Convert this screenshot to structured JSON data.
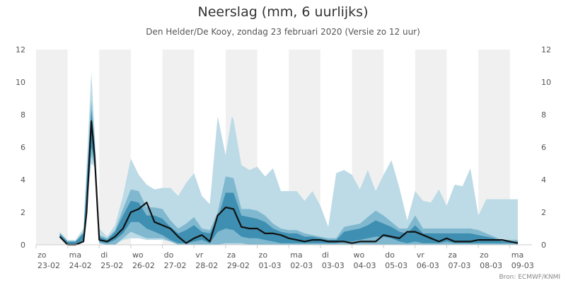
{
  "title": "Neerslag (mm, 6 uurlijks)",
  "subtitle": "Den Helder/De Kooy, zondag 23 februari 2020 (Versie zo 12 uur)",
  "source": "Bron: ECMWF/KNMI",
  "colors": {
    "band_outer": "#bcdbe6",
    "band_mid": "#80b8cf",
    "band_inner": "#3e8fb1",
    "median_line": "#111111",
    "day_shade": "#f0f0f0"
  },
  "chart_data": {
    "type": "area",
    "title": "Neerslag (mm, 6 uurlijks)",
    "subtitle": "Den Helder/De Kooy, zondag 23 februari 2020 (Versie zo 12 uur)",
    "xlabel": "",
    "ylabel": "",
    "ylim": [
      0,
      12
    ],
    "y_ticks": [
      0,
      2,
      4,
      6,
      8,
      10,
      12
    ],
    "y_axes": "left and right",
    "grid": false,
    "legend": "none",
    "x_unit": "days since 23-02-2020 00:00",
    "x_ticks": [
      {
        "day": "zo",
        "date": "23-02"
      },
      {
        "day": "ma",
        "date": "24-02"
      },
      {
        "day": "di",
        "date": "25-02"
      },
      {
        "day": "wo",
        "date": "26-02"
      },
      {
        "day": "do",
        "date": "27-02"
      },
      {
        "day": "vr",
        "date": "28-02"
      },
      {
        "day": "za",
        "date": "29-02"
      },
      {
        "day": "zo",
        "date": "01-03"
      },
      {
        "day": "ma",
        "date": "02-03"
      },
      {
        "day": "di",
        "date": "03-03"
      },
      {
        "day": "wo",
        "date": "04-03"
      },
      {
        "day": "do",
        "date": "05-03"
      },
      {
        "day": "vr",
        "date": "06-03"
      },
      {
        "day": "za",
        "date": "07-03"
      },
      {
        "day": "zo",
        "date": "08-03"
      },
      {
        "day": "ma",
        "date": "09-03"
      }
    ],
    "series": [
      {
        "role": "outer_band",
        "x": [
          0.75,
          1.0,
          1.25,
          1.5,
          1.75,
          1.85,
          2.0,
          2.25,
          2.5,
          2.75,
          3.0,
          3.25,
          3.5,
          3.75,
          4.0,
          4.25,
          4.5,
          4.75,
          5.0,
          5.25,
          5.5,
          5.75,
          6.0,
          6.2,
          6.25,
          6.5,
          6.75,
          7.0,
          7.25,
          7.5,
          7.75,
          8.0,
          8.25,
          8.5,
          8.75,
          9.0,
          9.25,
          9.5,
          9.75,
          10.0,
          10.25,
          10.5,
          10.75,
          11.0,
          11.25,
          11.5,
          11.75,
          12.0,
          12.25,
          12.5,
          12.75,
          13.0,
          13.25,
          13.5,
          13.75,
          14.0,
          14.25,
          14.5,
          14.75,
          15.0,
          15.25
        ],
        "lower": [
          0.5,
          0,
          0,
          0.3,
          5.0,
          4.8,
          0.1,
          0,
          0,
          0.3,
          0.4,
          0.4,
          0.3,
          0.3,
          0.3,
          0.2,
          0,
          0,
          0,
          0,
          0,
          0,
          0,
          0,
          0,
          0,
          0,
          0,
          0,
          0,
          0,
          0,
          0,
          0,
          0,
          0,
          0,
          0,
          0,
          0,
          0,
          0,
          0,
          0,
          0,
          0,
          0,
          0,
          0,
          0,
          0,
          0,
          0,
          0,
          0,
          0,
          0,
          0,
          0,
          0,
          0
        ],
        "upper": [
          0.8,
          0.3,
          0.3,
          1.0,
          10.6,
          7.0,
          1.0,
          0.5,
          1.2,
          3.0,
          5.3,
          4.3,
          3.7,
          3.4,
          3.5,
          3.5,
          3.0,
          3.8,
          4.4,
          3.0,
          2.5,
          7.9,
          5.5,
          7.9,
          7.7,
          4.9,
          4.6,
          4.8,
          4.2,
          4.7,
          3.3,
          3.3,
          3.3,
          2.7,
          3.3,
          2.4,
          1.1,
          4.4,
          4.6,
          4.3,
          3.4,
          4.6,
          3.3,
          4.3,
          5.2,
          3.5,
          1.5,
          3.3,
          2.7,
          2.6,
          3.4,
          2.4,
          3.7,
          3.6,
          4.7,
          1.8,
          2.8,
          2.8,
          2.8,
          2.8,
          2.8
        ]
      },
      {
        "role": "mid_band",
        "x": [
          0.75,
          1.0,
          1.25,
          1.5,
          1.75,
          1.85,
          2.0,
          2.25,
          2.5,
          2.75,
          3.0,
          3.25,
          3.5,
          3.75,
          4.0,
          4.25,
          4.5,
          4.75,
          5.0,
          5.25,
          5.5,
          5.75,
          6.0,
          6.25,
          6.5,
          6.75,
          7.0,
          7.25,
          7.5,
          7.75,
          8.0,
          8.25,
          8.5,
          8.75,
          9.0,
          9.25,
          9.5,
          9.75,
          10.0,
          10.25,
          10.5,
          10.75,
          11.0,
          11.25,
          11.5,
          11.75,
          12.0,
          12.25,
          12.5,
          12.75,
          13.0,
          13.25,
          13.5,
          13.75,
          14.0,
          14.25,
          14.5,
          14.75,
          15.0,
          15.25
        ],
        "lower": [
          0.5,
          0,
          0,
          0.2,
          5.5,
          4.9,
          0.1,
          0,
          0,
          0.4,
          0.8,
          0.6,
          0.4,
          0.4,
          0.4,
          0.2,
          0,
          0,
          0,
          0,
          0,
          0,
          0.1,
          0.1,
          0.1,
          0,
          0,
          0,
          0,
          0,
          0,
          0,
          0,
          0,
          0,
          0,
          0,
          0,
          0,
          0,
          0,
          0,
          0,
          0,
          0,
          0,
          0,
          0,
          0,
          0,
          0,
          0,
          0,
          0,
          0,
          0,
          0,
          0,
          0,
          0
        ],
        "upper": [
          0.7,
          0.2,
          0.2,
          0.8,
          8.9,
          6.5,
          0.6,
          0.4,
          0.9,
          2.2,
          3.4,
          3.3,
          2.3,
          2.3,
          2.2,
          1.5,
          1.0,
          1.3,
          1.7,
          1.0,
          0.9,
          2.0,
          4.2,
          4.1,
          2.2,
          2.2,
          2.1,
          1.8,
          1.3,
          1.0,
          0.9,
          0.9,
          0.7,
          0.6,
          0.5,
          0.4,
          0.4,
          1.1,
          1.2,
          1.3,
          1.7,
          2.1,
          1.8,
          1.4,
          1.0,
          1.0,
          1.8,
          1.0,
          1.0,
          1.0,
          1.0,
          1.0,
          1.0,
          1.0,
          0.9,
          0.7,
          0.5,
          0.3,
          0.3,
          0.3
        ]
      },
      {
        "role": "inner_band",
        "x": [
          0.75,
          1.0,
          1.25,
          1.5,
          1.75,
          1.85,
          2.0,
          2.25,
          2.5,
          2.75,
          3.0,
          3.25,
          3.5,
          3.75,
          4.0,
          4.25,
          4.5,
          4.75,
          5.0,
          5.25,
          5.5,
          5.75,
          6.0,
          6.25,
          6.5,
          6.75,
          7.0,
          7.25,
          7.5,
          7.75,
          8.0,
          8.25,
          8.5,
          8.75,
          9.0,
          9.25,
          9.5,
          9.75,
          10.0,
          10.25,
          10.5,
          10.75,
          11.0,
          11.25,
          11.5,
          11.75,
          12.0,
          12.25,
          12.5,
          12.75,
          13.0,
          13.25,
          13.5,
          13.75,
          14.0,
          14.25,
          14.5,
          14.75,
          15.0,
          15.25
        ],
        "lower": [
          0.5,
          0,
          0,
          0.3,
          6.0,
          5.2,
          0.2,
          0.1,
          0.3,
          0.7,
          1.4,
          1.4,
          1.0,
          0.8,
          0.6,
          0.3,
          0.1,
          0.1,
          0.2,
          0.3,
          0.1,
          0.8,
          1.0,
          0.9,
          0.5,
          0.4,
          0.4,
          0.3,
          0.2,
          0.1,
          0.1,
          0.1,
          0.1,
          0.1,
          0.1,
          0.1,
          0.1,
          0.2,
          0.2,
          0.3,
          0.4,
          0.5,
          0.5,
          0.4,
          0.2,
          0.1,
          0.2,
          0.1,
          0.1,
          0.1,
          0.2,
          0.1,
          0.1,
          0.1,
          0.1,
          0.1,
          0.1,
          0.1,
          0.1,
          0.1
        ],
        "upper": [
          0.7,
          0.2,
          0.2,
          0.7,
          8.3,
          6.2,
          0.5,
          0.3,
          0.8,
          1.8,
          2.7,
          2.6,
          1.8,
          1.8,
          1.6,
          1.1,
          0.7,
          0.9,
          1.2,
          0.8,
          0.7,
          1.6,
          3.2,
          3.2,
          1.8,
          1.7,
          1.6,
          1.4,
          1.0,
          0.8,
          0.7,
          0.7,
          0.5,
          0.5,
          0.4,
          0.3,
          0.3,
          0.8,
          0.9,
          1.0,
          1.2,
          1.5,
          1.3,
          1.1,
          0.8,
          0.7,
          1.2,
          0.7,
          0.7,
          0.7,
          0.7,
          0.7,
          0.7,
          0.7,
          0.6,
          0.5,
          0.4,
          0.2,
          0.2,
          0.2
        ]
      },
      {
        "role": "median",
        "x": [
          0.75,
          1.0,
          1.25,
          1.5,
          1.6,
          1.75,
          1.85,
          2.0,
          2.25,
          2.5,
          2.75,
          3.0,
          3.25,
          3.5,
          3.75,
          4.0,
          4.25,
          4.5,
          4.75,
          5.0,
          5.25,
          5.5,
          5.75,
          6.0,
          6.25,
          6.5,
          6.75,
          7.0,
          7.25,
          7.5,
          7.75,
          8.0,
          8.25,
          8.5,
          8.75,
          9.0,
          9.25,
          9.5,
          9.75,
          10.0,
          10.25,
          10.5,
          10.75,
          11.0,
          11.25,
          11.5,
          11.75,
          12.0,
          12.25,
          12.5,
          12.75,
          13.0,
          13.25,
          13.5,
          13.75,
          14.0,
          14.25,
          14.5,
          14.75,
          15.0,
          15.25
        ],
        "values": [
          0.5,
          0,
          0,
          0.2,
          2.0,
          7.6,
          5.5,
          0.3,
          0.2,
          0.5,
          1.0,
          2.0,
          2.2,
          2.6,
          1.4,
          1.2,
          1.0,
          0.5,
          0.1,
          0.4,
          0.6,
          0.2,
          1.8,
          2.3,
          2.2,
          1.1,
          1.0,
          1.0,
          0.7,
          0.7,
          0.6,
          0.4,
          0.3,
          0.2,
          0.3,
          0.3,
          0.2,
          0.2,
          0.2,
          0.1,
          0.2,
          0.2,
          0.2,
          0.6,
          0.5,
          0.4,
          0.8,
          0.8,
          0.6,
          0.4,
          0.2,
          0.4,
          0.2,
          0.2,
          0.2,
          0.3,
          0.3,
          0.3,
          0.3,
          0.2,
          0.1
        ]
      }
    ]
  }
}
